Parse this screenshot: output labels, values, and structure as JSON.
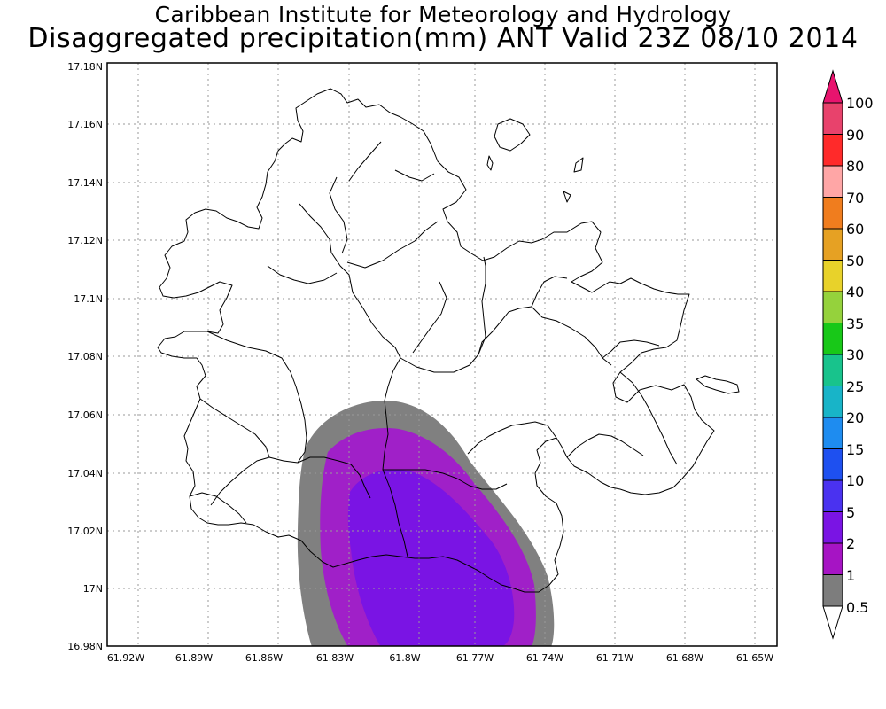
{
  "header": {
    "title": "Caribbean Institute for Meteorology and Hydrology",
    "subtitle": "Disaggregated precipitation(mm) ANT Valid 23Z 08/10 2014"
  },
  "axes": {
    "lon_ticks": [
      "61.92W",
      "61.89W",
      "61.86W",
      "61.83W",
      "61.8W",
      "61.77W",
      "61.74W",
      "61.71W",
      "61.68W",
      "61.65W"
    ],
    "lat_ticks": [
      "17.18N",
      "17.16N",
      "17.14N",
      "17.12N",
      "17.1N",
      "17.08N",
      "17.06N",
      "17.04N",
      "17.02N",
      "17N",
      "16.98N"
    ]
  },
  "colorbar": {
    "labels": [
      "100",
      "90",
      "80",
      "70",
      "60",
      "50",
      "40",
      "35",
      "30",
      "25",
      "20",
      "15",
      "10",
      "5",
      "2",
      "1",
      "0.5"
    ],
    "colors": [
      "#e8426c",
      "#ff2a2a",
      "#ffa6a6",
      "#f07d1e",
      "#e6a123",
      "#e8d22a",
      "#95d23c",
      "#18c818",
      "#18c38c",
      "#18b4c8",
      "#1e8cf0",
      "#1e50f0",
      "#4a32f0",
      "#7a14e4",
      "#a614c4",
      "#7d7d7d"
    ],
    "top_arrow_color": "#e8146e",
    "bottom_arrow_color": "#ffffff"
  },
  "precip_colors": {
    "gray": "#808080",
    "magenta": "#a020c8",
    "purple": "#7a14e4"
  }
}
